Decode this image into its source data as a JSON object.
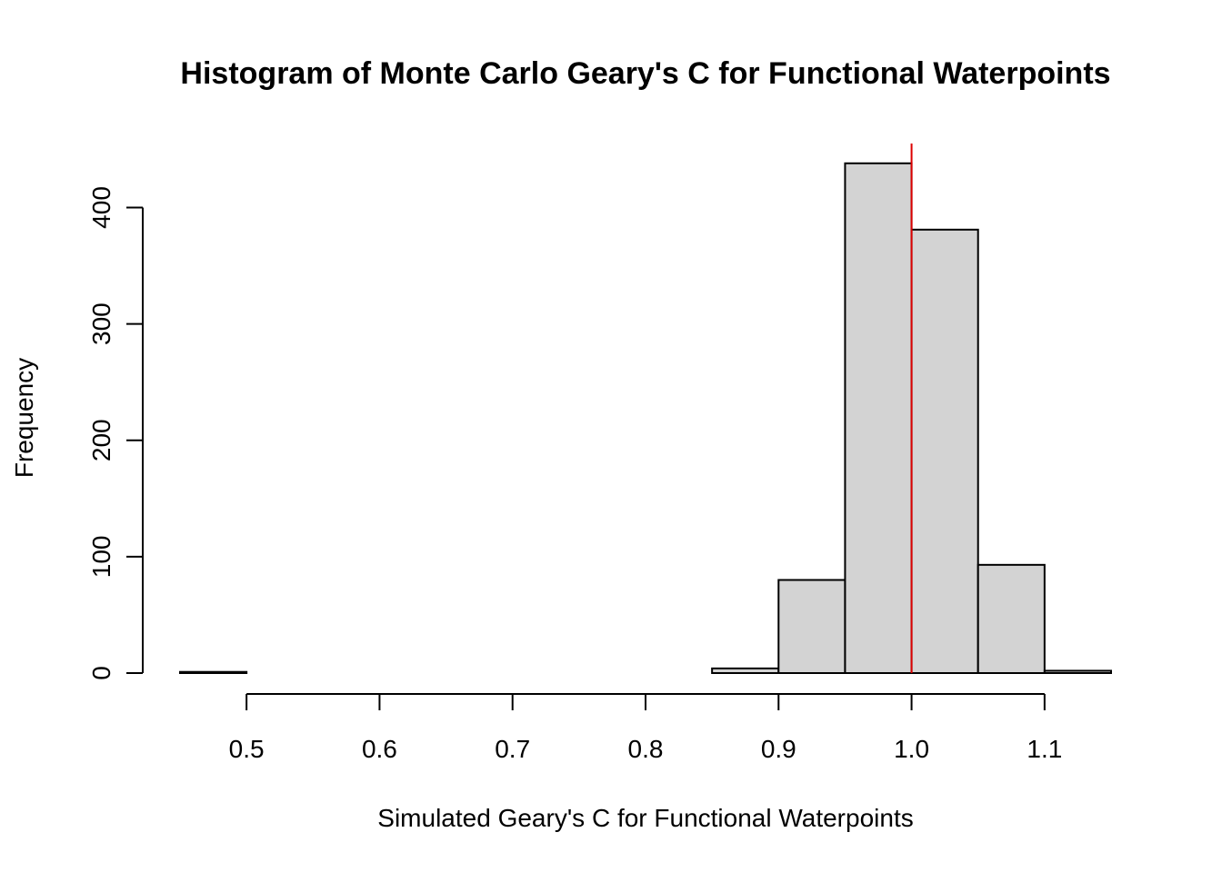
{
  "chart_data": {
    "type": "bar",
    "title": "Histogram of Monte Carlo Geary's C for Functional Waterpoints",
    "xlabel": "Simulated Geary's C for Functional Waterpoints",
    "ylabel": "Frequency",
    "bins": [
      {
        "start": 0.45,
        "end": 0.5,
        "count": 1
      },
      {
        "start": 0.5,
        "end": 0.55,
        "count": 0
      },
      {
        "start": 0.55,
        "end": 0.6,
        "count": 0
      },
      {
        "start": 0.6,
        "end": 0.65,
        "count": 0
      },
      {
        "start": 0.65,
        "end": 0.7,
        "count": 0
      },
      {
        "start": 0.7,
        "end": 0.75,
        "count": 0
      },
      {
        "start": 0.75,
        "end": 0.8,
        "count": 0
      },
      {
        "start": 0.8,
        "end": 0.85,
        "count": 0
      },
      {
        "start": 0.85,
        "end": 0.9,
        "count": 4
      },
      {
        "start": 0.9,
        "end": 0.95,
        "count": 80
      },
      {
        "start": 0.95,
        "end": 1.0,
        "count": 438
      },
      {
        "start": 1.0,
        "end": 1.05,
        "count": 381
      },
      {
        "start": 1.05,
        "end": 1.1,
        "count": 93
      },
      {
        "start": 1.1,
        "end": 1.15,
        "count": 2
      }
    ],
    "x_ticks": [
      0.5,
      0.6,
      0.7,
      0.8,
      0.9,
      1.0,
      1.1
    ],
    "x_tick_labels": [
      "0.5",
      "0.6",
      "0.7",
      "0.8",
      "0.9",
      "1.0",
      "1.1"
    ],
    "y_ticks": [
      0,
      100,
      200,
      300,
      400
    ],
    "y_tick_labels": [
      "0",
      "100",
      "200",
      "300",
      "400"
    ],
    "xlim": [
      0.45,
      1.15
    ],
    "ylim": [
      0,
      455
    ],
    "reference_line": {
      "x": 1.0,
      "color": "#dd0000"
    },
    "bar_color": "#d3d3d3",
    "grid": false
  }
}
